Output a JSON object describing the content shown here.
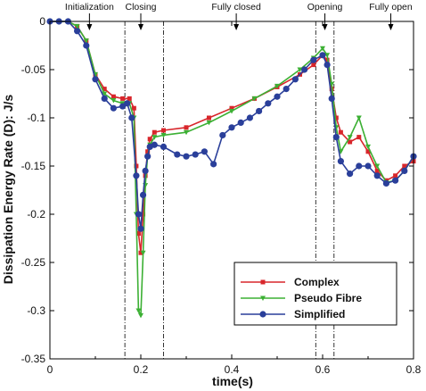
{
  "chart_data": {
    "type": "line",
    "xlabel": "time(s)",
    "ylabel": "Dissipation Energy Rate (D): J/s",
    "xlim": [
      0,
      0.8
    ],
    "ylim": [
      -0.35,
      0
    ],
    "xticks": [
      0,
      0.2,
      0.4,
      0.6,
      0.8
    ],
    "yticks": [
      0,
      -0.05,
      -0.1,
      -0.15,
      -0.2,
      -0.25,
      -0.3,
      -0.35
    ],
    "xtick_labels": [
      "0",
      "0.2",
      "0.4",
      "0.6",
      "0.8"
    ],
    "ytick_labels": [
      "0",
      "-0.05",
      "-0.1",
      "-0.15",
      "-0.2",
      "-0.25",
      "-0.3",
      "-0.35"
    ],
    "grid": false,
    "legend_position": "bottom-right",
    "phase_boundaries": [
      0.165,
      0.25,
      0.585,
      0.625
    ],
    "phases": [
      {
        "label": "Initialization",
        "x": 0.087
      },
      {
        "label": "Closing",
        "x": 0.2
      },
      {
        "label": "Fully closed",
        "x": 0.41
      },
      {
        "label": "Opening",
        "x": 0.605
      },
      {
        "label": "Fully open",
        "x": 0.75
      }
    ],
    "series": [
      {
        "name": "Complex",
        "color": "#d8262b",
        "marker": "square",
        "x": [
          0,
          0.02,
          0.04,
          0.06,
          0.08,
          0.1,
          0.12,
          0.14,
          0.16,
          0.175,
          0.185,
          0.19,
          0.195,
          0.2,
          0.205,
          0.21,
          0.215,
          0.22,
          0.23,
          0.25,
          0.3,
          0.35,
          0.4,
          0.45,
          0.5,
          0.55,
          0.58,
          0.6,
          0.61,
          0.62,
          0.63,
          0.64,
          0.66,
          0.68,
          0.7,
          0.72,
          0.74,
          0.76,
          0.78,
          0.8
        ],
        "y": [
          0,
          0,
          0,
          -0.005,
          -0.02,
          -0.055,
          -0.07,
          -0.078,
          -0.08,
          -0.08,
          -0.09,
          -0.15,
          -0.22,
          -0.24,
          -0.2,
          -0.16,
          -0.135,
          -0.122,
          -0.115,
          -0.113,
          -0.11,
          -0.1,
          -0.09,
          -0.08,
          -0.068,
          -0.055,
          -0.045,
          -0.035,
          -0.04,
          -0.07,
          -0.1,
          -0.115,
          -0.125,
          -0.12,
          -0.135,
          -0.155,
          -0.165,
          -0.16,
          -0.15,
          -0.145
        ]
      },
      {
        "name": "Pseudo Fibre",
        "color": "#3cb034",
        "marker": "triangle-down",
        "x": [
          0,
          0.02,
          0.04,
          0.06,
          0.08,
          0.1,
          0.12,
          0.14,
          0.16,
          0.175,
          0.185,
          0.19,
          0.195,
          0.2,
          0.205,
          0.21,
          0.215,
          0.22,
          0.23,
          0.25,
          0.3,
          0.35,
          0.4,
          0.45,
          0.5,
          0.55,
          0.58,
          0.6,
          0.61,
          0.62,
          0.63,
          0.64,
          0.66,
          0.68,
          0.7,
          0.72,
          0.74,
          0.76,
          0.78,
          0.8
        ],
        "y": [
          0,
          0,
          0,
          -0.005,
          -0.02,
          -0.055,
          -0.075,
          -0.082,
          -0.085,
          -0.085,
          -0.1,
          -0.2,
          -0.3,
          -0.305,
          -0.24,
          -0.17,
          -0.14,
          -0.128,
          -0.12,
          -0.118,
          -0.115,
          -0.105,
          -0.093,
          -0.08,
          -0.067,
          -0.05,
          -0.038,
          -0.028,
          -0.035,
          -0.065,
          -0.11,
          -0.135,
          -0.12,
          -0.1,
          -0.13,
          -0.15,
          -0.167,
          -0.165,
          -0.155,
          -0.14
        ]
      },
      {
        "name": "Simplified",
        "color": "#2a3f9a",
        "marker": "circle",
        "x": [
          0,
          0.02,
          0.04,
          0.06,
          0.08,
          0.1,
          0.12,
          0.14,
          0.16,
          0.17,
          0.18,
          0.19,
          0.195,
          0.2,
          0.205,
          0.21,
          0.215,
          0.22,
          0.23,
          0.25,
          0.28,
          0.3,
          0.32,
          0.34,
          0.36,
          0.38,
          0.4,
          0.42,
          0.44,
          0.46,
          0.48,
          0.5,
          0.52,
          0.54,
          0.56,
          0.58,
          0.6,
          0.61,
          0.62,
          0.63,
          0.64,
          0.66,
          0.68,
          0.7,
          0.72,
          0.74,
          0.76,
          0.78,
          0.8
        ],
        "y": [
          0,
          0,
          0,
          -0.01,
          -0.025,
          -0.06,
          -0.08,
          -0.09,
          -0.088,
          -0.085,
          -0.1,
          -0.16,
          -0.2,
          -0.215,
          -0.18,
          -0.155,
          -0.14,
          -0.13,
          -0.128,
          -0.13,
          -0.138,
          -0.14,
          -0.138,
          -0.135,
          -0.148,
          -0.118,
          -0.11,
          -0.105,
          -0.1,
          -0.093,
          -0.085,
          -0.078,
          -0.07,
          -0.06,
          -0.05,
          -0.04,
          -0.035,
          -0.045,
          -0.08,
          -0.12,
          -0.145,
          -0.158,
          -0.15,
          -0.15,
          -0.16,
          -0.168,
          -0.165,
          -0.155,
          -0.14
        ]
      }
    ]
  }
}
